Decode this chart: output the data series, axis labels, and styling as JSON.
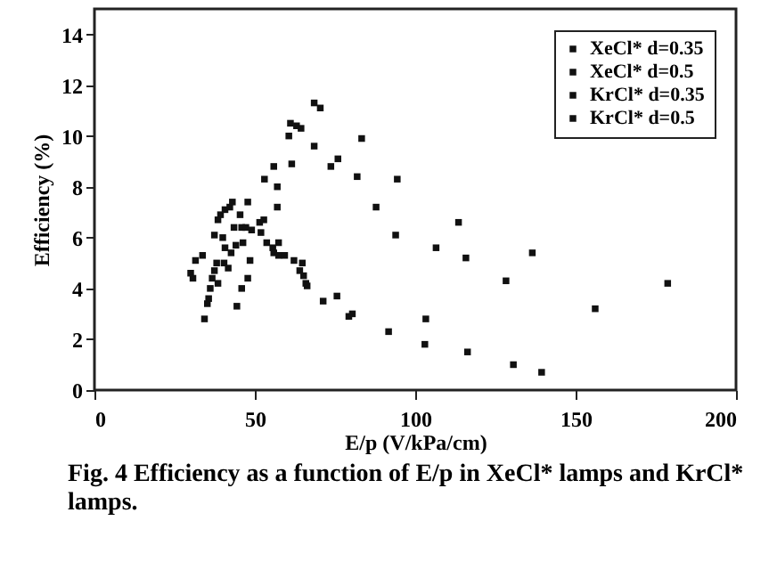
{
  "chart_data": {
    "type": "scatter",
    "xlabel": "E/p    (V/kPa/cm)",
    "ylabel": "Efficiency    (%)",
    "annotations": [
      "Fig. 4 Efficiency as a function of E/p in XeCl* lamps and KrCl* lamps."
    ],
    "xlim": [
      0,
      200
    ],
    "xticks": [
      0,
      50,
      100,
      150,
      200
    ],
    "ylim": [
      0,
      15
    ],
    "yticks": [
      0,
      2,
      4,
      6,
      8,
      10,
      12,
      14
    ],
    "grid": false,
    "legend": "top right",
    "marker": "square",
    "series": [
      {
        "name": "XeCl* d=0.35",
        "color": "#111111",
        "x": [
          53,
          55.9,
          57,
          57,
          60.6,
          61.1,
          61.5,
          63,
          64.4,
          68.5,
          70.4,
          68.5,
          73.7,
          75.9,
          81.9,
          83.3,
          87.8,
          93.9,
          94.4,
          106.5,
          113.5,
          115.8,
          128.3,
          136.5,
          156.1,
          178.7
        ],
        "values": [
          8.3,
          8.8,
          8.0,
          7.2,
          10.0,
          10.5,
          8.9,
          10.4,
          10.3,
          11.3,
          11.1,
          9.6,
          8.8,
          9.1,
          8.4,
          9.9,
          7.2,
          6.1,
          8.3,
          5.6,
          6.6,
          5.2,
          4.3,
          5.4,
          3.2,
          4.2
        ]
      },
      {
        "name": "XeCl* d=0.5",
        "color": "#111111",
        "x": [
          38.5,
          39.3,
          40.7,
          42.2,
          43,
          47.8,
          45.4,
          43.5,
          45.9,
          47.2,
          49,
          51.5,
          51.9,
          52.8,
          53.7,
          37.4,
          40
        ],
        "values": [
          6.7,
          6.9,
          7.1,
          7.2,
          7.4,
          7.4,
          6.9,
          6.4,
          6.4,
          6.4,
          6.3,
          6.6,
          6.2,
          6.7,
          5.8,
          6.1,
          6.0
        ]
      },
      {
        "name": "KrCl* d=0.35",
        "color": "#111111",
        "x": [
          34.3,
          35.2,
          35.6,
          36.1,
          36.7,
          37.4,
          38.1,
          44.4,
          45.9,
          47.8,
          48.5,
          71.3,
          75.6,
          79.3,
          80.4,
          91.7,
          103.3,
          103,
          116.3,
          130.6,
          139.4
        ],
        "values": [
          2.8,
          3.4,
          3.6,
          4.0,
          4.4,
          4.7,
          5.0,
          3.3,
          4.0,
          4.4,
          5.1,
          3.5,
          3.7,
          2.9,
          3.0,
          2.3,
          2.8,
          1.8,
          1.5,
          1.0,
          0.7
        ]
      },
      {
        "name": "KrCl* d=0.5",
        "color": "#111111",
        "x": [
          30,
          30.7,
          31.5,
          33.7,
          38.5,
          40.4,
          41.7,
          40.7,
          42.6,
          44.1,
          46.3,
          55.6,
          55.9,
          57.4,
          57.4,
          59.3,
          62.2,
          64.8,
          64,
          65.2,
          65.9,
          66.3
        ],
        "values": [
          4.6,
          4.4,
          5.1,
          5.3,
          4.2,
          5.0,
          4.8,
          5.6,
          5.4,
          5.7,
          5.8,
          5.6,
          5.4,
          5.8,
          5.3,
          5.3,
          5.1,
          5.0,
          4.7,
          4.5,
          4.2,
          4.1
        ]
      }
    ]
  }
}
